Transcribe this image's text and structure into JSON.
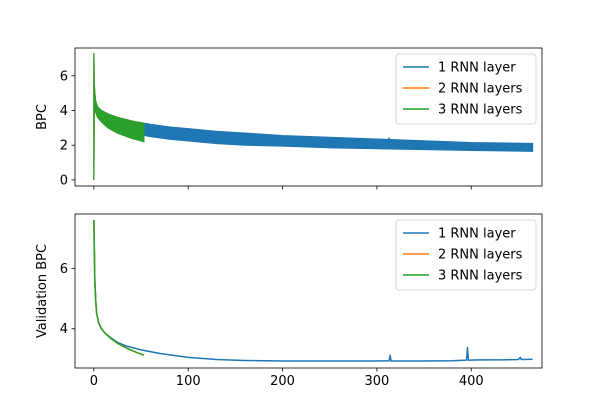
{
  "chart_data": [
    {
      "type": "line",
      "title": "",
      "xlabel": "",
      "ylabel": "BPC",
      "xlim": [
        -20,
        475
      ],
      "ylim": [
        -0.35,
        7.6
      ],
      "xticks": [
        0,
        100,
        200,
        300,
        400
      ],
      "show_x_tick_labels": false,
      "yticks": [
        0,
        2,
        4,
        6
      ],
      "legend": "top-right",
      "band_alpha": 1.0,
      "series": [
        {
          "name": "1 RNN layer",
          "color": "#1f77b4",
          "x": [
            0,
            0.4,
            1,
            2,
            4,
            8,
            15,
            25,
            40,
            60,
            80,
            100,
            130,
            160,
            200,
            250,
            300,
            350,
            400,
            465
          ],
          "upper": [
            7.3,
            5.6,
            5.0,
            4.5,
            4.2,
            4.0,
            3.8,
            3.6,
            3.4,
            3.2,
            3.05,
            2.95,
            2.8,
            2.7,
            2.55,
            2.45,
            2.35,
            2.25,
            2.15,
            2.1
          ],
          "lower": [
            0.0,
            4.0,
            4.0,
            3.9,
            3.7,
            3.4,
            3.1,
            2.9,
            2.7,
            2.5,
            2.35,
            2.25,
            2.1,
            2.0,
            1.95,
            1.85,
            1.8,
            1.75,
            1.7,
            1.65
          ],
          "spikes": [
            [
              313,
              2.45
            ]
          ]
        },
        {
          "name": "2 RNN layers",
          "color": "#ff7f0e",
          "x": [
            0,
            0.4,
            1,
            2,
            4,
            8,
            15,
            25,
            40,
            53
          ],
          "upper": [
            7.3,
            5.6,
            5.0,
            4.5,
            4.2,
            4.0,
            3.8,
            3.6,
            3.4,
            3.25
          ],
          "lower": [
            0.0,
            4.0,
            4.0,
            3.9,
            3.6,
            3.35,
            3.0,
            2.7,
            2.4,
            2.25
          ],
          "spikes": []
        },
        {
          "name": "3 RNN layers",
          "color": "#2ca02c",
          "x": [
            0,
            0.4,
            1,
            2,
            4,
            8,
            15,
            25,
            40,
            53
          ],
          "upper": [
            7.3,
            5.6,
            5.0,
            4.5,
            4.2,
            4.0,
            3.8,
            3.6,
            3.4,
            3.25
          ],
          "lower": [
            0.0,
            4.0,
            4.0,
            3.9,
            3.6,
            3.35,
            3.0,
            2.7,
            2.4,
            2.2
          ],
          "spikes": []
        }
      ]
    },
    {
      "type": "line",
      "title": "",
      "xlabel": "",
      "ylabel": "Validation BPC",
      "xlim": [
        -20,
        475
      ],
      "ylim": [
        2.7,
        7.8
      ],
      "xticks": [
        0,
        100,
        200,
        300,
        400
      ],
      "show_x_tick_labels": true,
      "yticks": [
        4,
        6
      ],
      "legend": "top-right",
      "series": [
        {
          "name": "1 RNN layer",
          "color": "#1f77b4",
          "x": [
            0,
            1,
            2,
            3,
            5,
            8,
            12,
            18,
            25,
            35,
            50,
            70,
            100,
            130,
            160,
            200,
            250,
            280,
            300,
            313,
            314,
            315,
            330,
            350,
            380,
            395,
            396,
            397,
            410,
            430,
            450,
            452,
            453,
            455,
            465
          ],
          "y": [
            7.6,
            5.6,
            4.9,
            4.5,
            4.2,
            4.0,
            3.85,
            3.7,
            3.55,
            3.42,
            3.3,
            3.18,
            3.05,
            2.98,
            2.95,
            2.93,
            2.93,
            2.93,
            2.93,
            2.94,
            3.12,
            2.93,
            2.93,
            2.93,
            2.94,
            2.96,
            3.38,
            2.96,
            2.97,
            2.97,
            2.98,
            3.05,
            2.98,
            2.98,
            2.99
          ]
        },
        {
          "name": "2 RNN layers",
          "color": "#ff7f0e",
          "x": [
            0,
            1,
            2,
            3,
            5,
            8,
            12,
            18,
            25,
            35,
            45,
            53
          ],
          "y": [
            7.6,
            5.6,
            4.9,
            4.5,
            4.2,
            4.0,
            3.85,
            3.68,
            3.52,
            3.35,
            3.22,
            3.13
          ]
        },
        {
          "name": "3 RNN layers",
          "color": "#2ca02c",
          "x": [
            0,
            1,
            2,
            3,
            5,
            8,
            12,
            18,
            25,
            35,
            45,
            53
          ],
          "y": [
            7.6,
            5.6,
            4.9,
            4.5,
            4.2,
            4.0,
            3.85,
            3.68,
            3.52,
            3.35,
            3.22,
            3.12
          ]
        }
      ]
    }
  ]
}
